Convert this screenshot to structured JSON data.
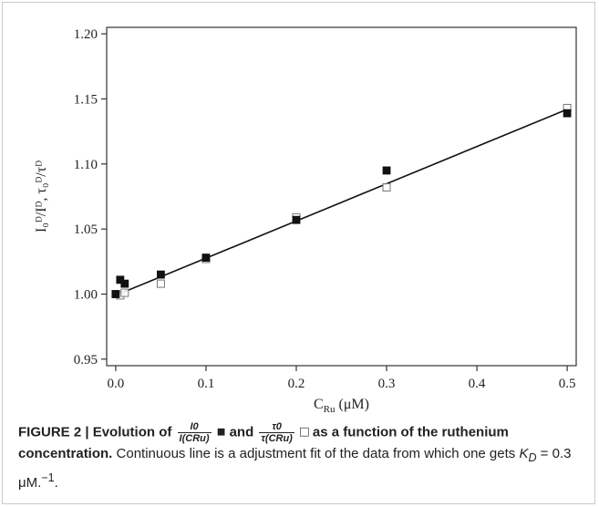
{
  "chart_data": {
    "type": "scatter",
    "xlim": [
      -0.01,
      0.51
    ],
    "ylim": [
      0.945,
      1.205
    ],
    "x_ticks": [
      0.0,
      0.1,
      0.2,
      0.3,
      0.4,
      0.5
    ],
    "y_ticks": [
      0.95,
      1.0,
      1.05,
      1.1,
      1.15,
      1.2
    ],
    "x_tick_labels": [
      "0.0",
      "0.1",
      "0.2",
      "0.3",
      "0.4",
      "0.5"
    ],
    "y_tick_labels": [
      "0.95",
      "1.00",
      "1.05",
      "1.10",
      "1.15",
      "1.20"
    ],
    "xlabel_main": "C",
    "xlabel_sub": "Ru",
    "xlabel_unit": "(μM)",
    "ylabel": "I₀ᴰ/Iᴰ, τ₀ᴰ/τᴰ",
    "grid": false,
    "series": [
      {
        "marker": "filled-square",
        "x": [
          0.0,
          0.005,
          0.01,
          0.05,
          0.1,
          0.2,
          0.3,
          0.5
        ],
        "y": [
          1.0,
          1.011,
          1.008,
          1.015,
          1.028,
          1.057,
          1.095,
          1.139
        ]
      },
      {
        "marker": "open-square",
        "x": [
          0.0,
          0.005,
          0.01,
          0.05,
          0.1,
          0.2,
          0.3,
          0.5
        ],
        "y": [
          1.0,
          0.999,
          1.001,
          1.008,
          1.027,
          1.059,
          1.082,
          1.143
        ]
      }
    ],
    "fit_line": {
      "x": [
        0.0,
        0.5
      ],
      "y": [
        0.999,
        1.142
      ]
    },
    "colors": {
      "marker": "#111111",
      "line": "#111111",
      "axis": "#333333"
    }
  },
  "caption": {
    "prefix": "FIGURE 2 | Evolution of",
    "frac1_num": "I0",
    "frac1_den": "I(CRu)",
    "filled_symbol": "■",
    "and": "and",
    "frac2_num": "τ0",
    "frac2_den": "τ(CRu)",
    "open_symbol": "□",
    "bold_rest": "as a function of the ruthenium concentration.",
    "text": "Continuous line is a adjustment fit of the data from which one gets",
    "kd": "K",
    "kd_sub": "D",
    "kd_value": "= 0.3 μM.",
    "kd_exp": "−1",
    "end": "."
  }
}
